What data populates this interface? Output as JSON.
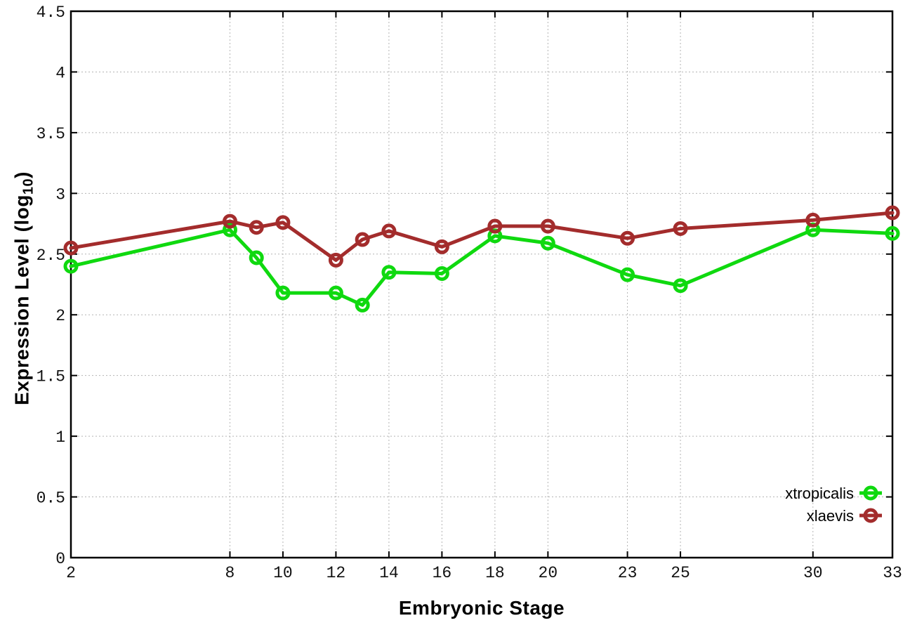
{
  "chart_data": {
    "type": "line",
    "title": "",
    "xlabel": "Embryonic Stage",
    "ylabel": "Expression Level (log10)",
    "ylabel_main": "Expression Level (log",
    "ylabel_sub": "10",
    "ylabel_close": ")",
    "x": [
      2,
      8,
      9,
      10,
      12,
      13,
      14,
      16,
      18,
      20,
      23,
      25,
      30,
      33
    ],
    "series": [
      {
        "name": "xtropicalis",
        "color": "#0fd90f",
        "values": [
          2.4,
          2.7,
          2.47,
          2.18,
          2.18,
          2.08,
          2.35,
          2.34,
          2.65,
          2.59,
          2.33,
          2.24,
          2.7,
          2.67
        ]
      },
      {
        "name": "xlaevis",
        "color": "#a32c2c",
        "values": [
          2.55,
          2.77,
          2.72,
          2.76,
          2.45,
          2.62,
          2.69,
          2.56,
          2.73,
          2.73,
          2.63,
          2.71,
          2.78,
          2.84
        ]
      }
    ],
    "xlim": [
      2,
      33
    ],
    "ylim": [
      0,
      4.5
    ],
    "xticks": [
      2,
      8,
      10,
      12,
      14,
      16,
      18,
      20,
      23,
      25,
      30,
      33
    ],
    "yticks": [
      0,
      0.5,
      1,
      1.5,
      2,
      2.5,
      3,
      3.5,
      4,
      4.5
    ],
    "grid": true,
    "grid_style": "dotted",
    "legend_position": "bottom-right",
    "legend": [
      "xtropicalis",
      "xlaevis"
    ],
    "marker": "open-circle",
    "background_color": "#ffffff",
    "border_color": "#000000",
    "gridline_color": "#b4b4b4"
  }
}
